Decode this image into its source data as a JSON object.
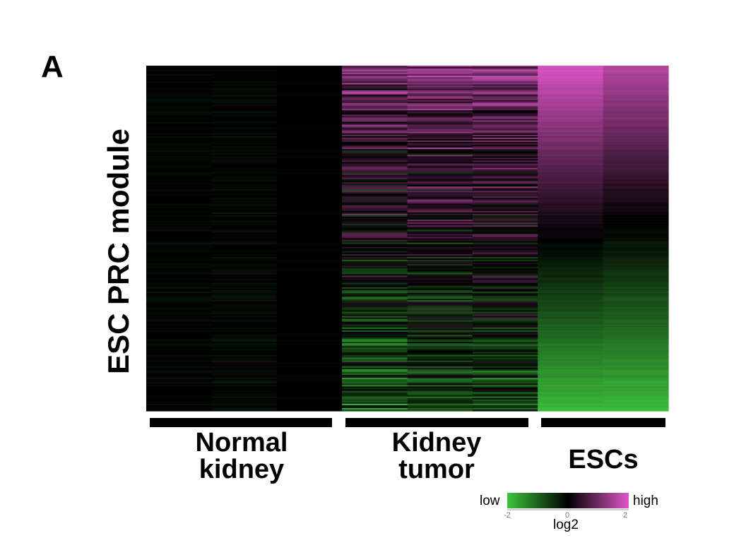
{
  "panel_label": "A",
  "chart_data": {
    "type": "heatmap",
    "ylabel": "ESC PRC module",
    "groups": [
      {
        "name": "Normal kidney",
        "line1": "Normal",
        "line2": "kidney",
        "columns": 3
      },
      {
        "name": "Kidney tumor",
        "line1": "Kidney",
        "line2": "tumor",
        "columns": 3
      },
      {
        "name": "ESCs",
        "line1": "ESCs",
        "line2": "",
        "columns": 2
      }
    ],
    "column_levels": [
      {
        "top": -0.05,
        "bottom": -0.05,
        "noise": 0.15
      },
      {
        "top": -0.05,
        "bottom": -0.1,
        "noise": 0.2
      },
      {
        "top": 0.0,
        "bottom": 0.0,
        "noise": 0.05
      },
      {
        "top": 0.9,
        "bottom": -0.9,
        "noise": 1.1
      },
      {
        "top": 1.0,
        "bottom": -0.8,
        "noise": 1.1
      },
      {
        "top": 1.0,
        "bottom": -0.7,
        "noise": 1.0
      },
      {
        "top": 1.9,
        "bottom": -1.9,
        "noise": 0.1
      },
      {
        "top": 1.6,
        "bottom": -1.9,
        "noise": 0.1
      }
    ],
    "row_count": 240,
    "colorbar": {
      "min": -2,
      "max": 2,
      "low_label": "low",
      "high_label": "high",
      "scale_label": "log2",
      "tick_min": "-2",
      "tick_mid": "0",
      "tick_max": "2",
      "low_color": "#3dc43d",
      "mid_color": "#000000",
      "high_color": "#e056c8"
    }
  }
}
